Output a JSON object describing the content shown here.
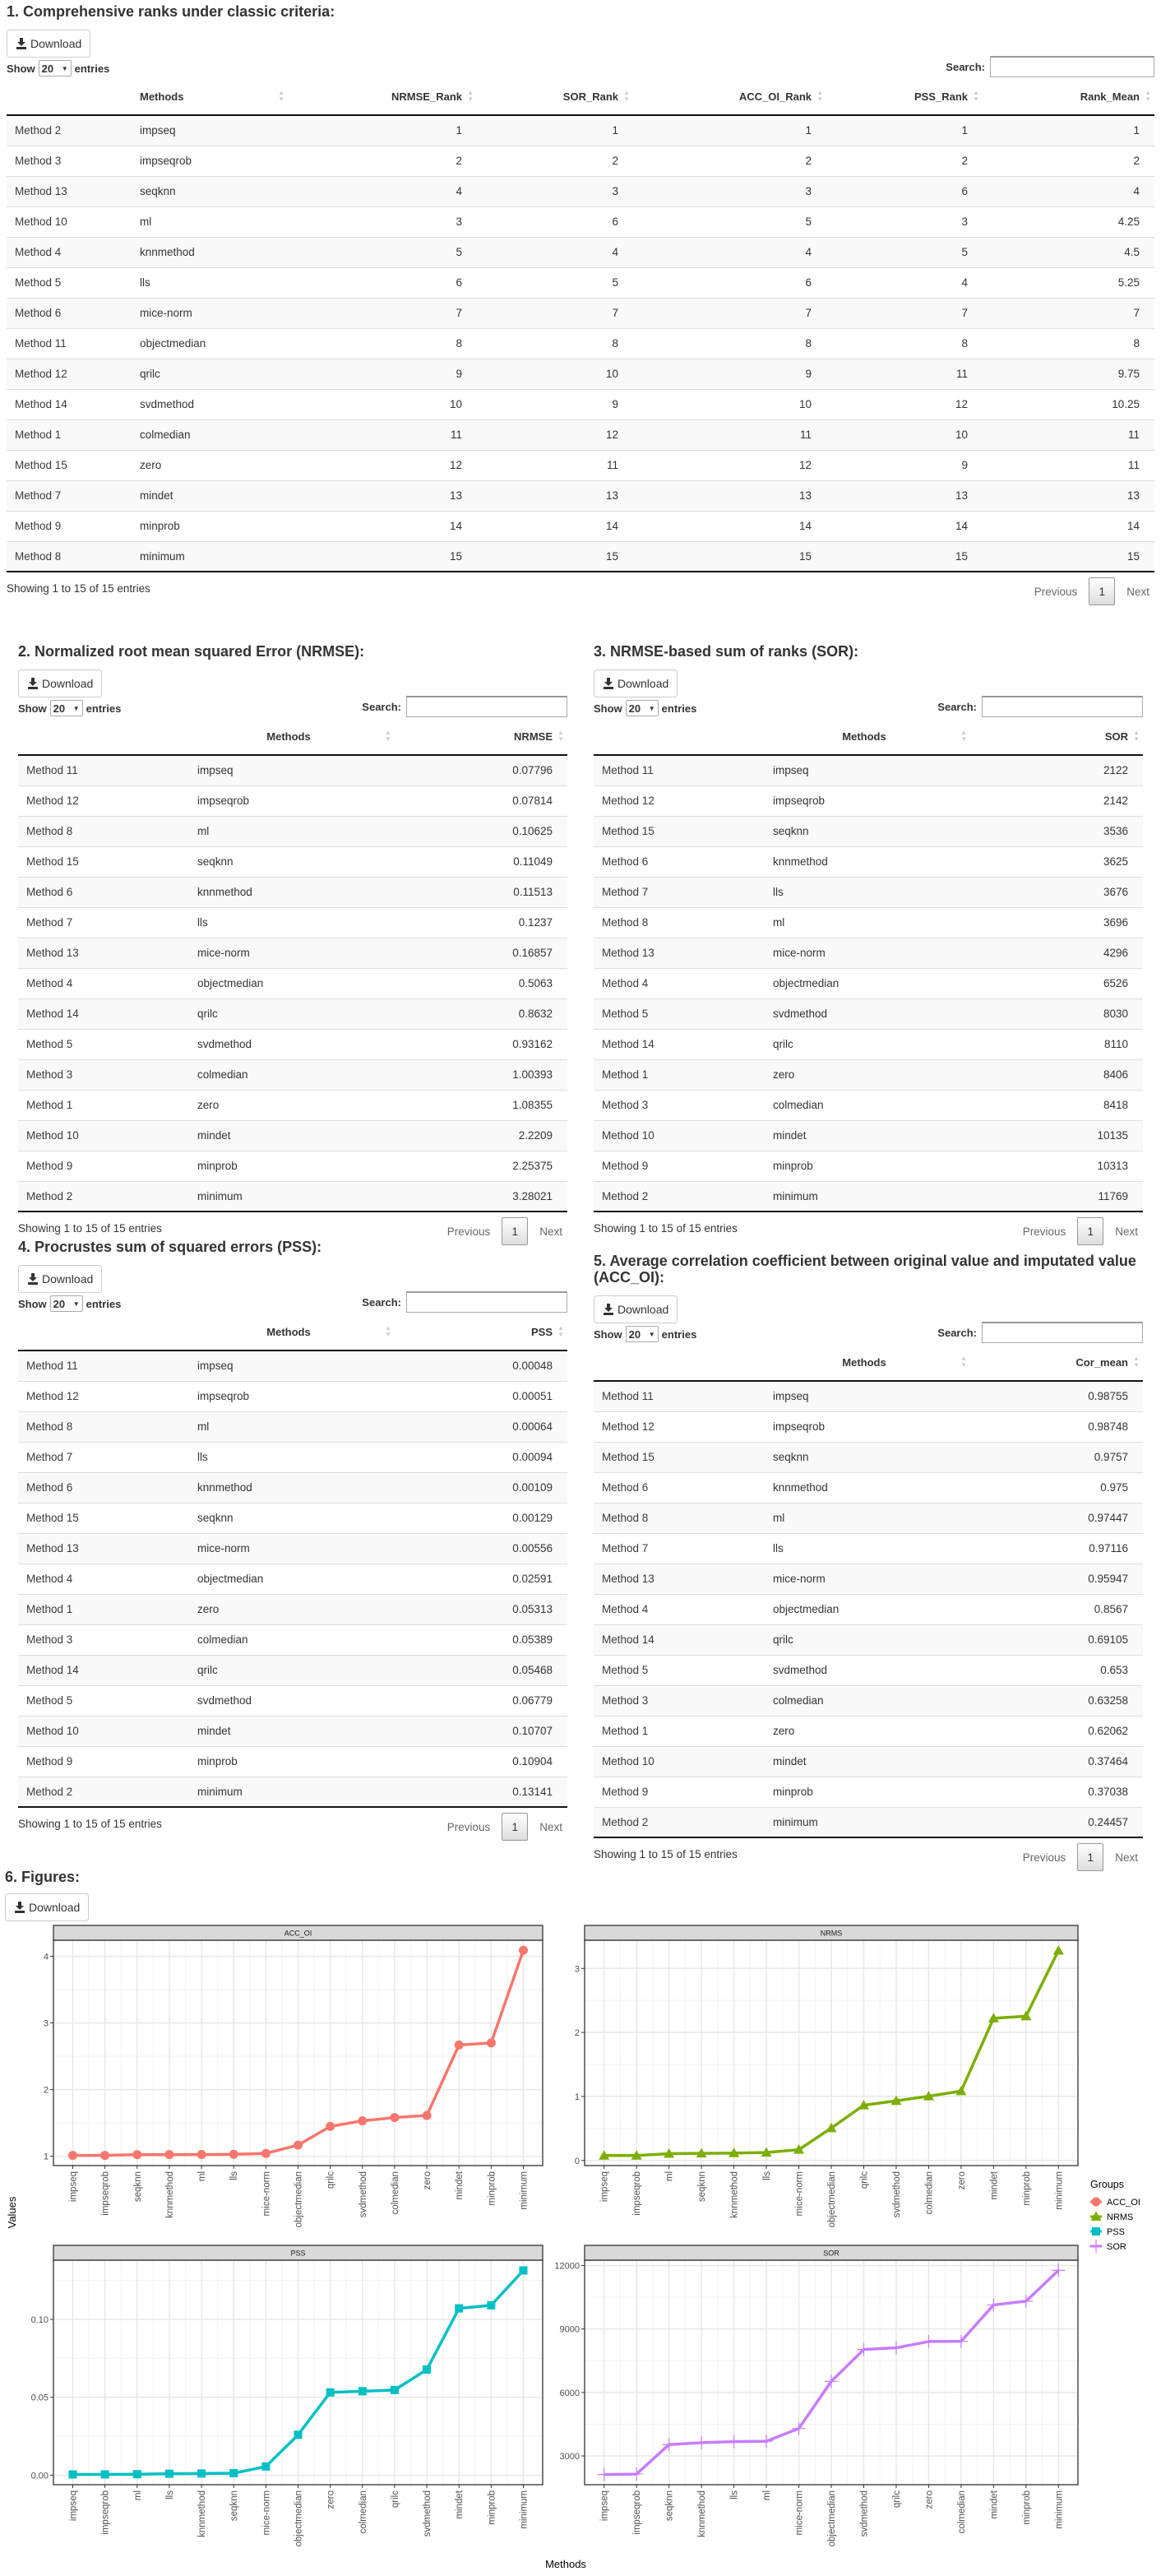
{
  "common": {
    "download_label": "Download",
    "show_label": "Show",
    "entries_label": "entries",
    "page_length": "20",
    "search_label": "Search:",
    "search_value": "",
    "info_text": "Showing 1 to 15 of 15 entries",
    "prev_label": "Previous",
    "current_page": "1",
    "next_label": "Next"
  },
  "tables": [
    {
      "title": "1. Comprehensive ranks under classic criteria:",
      "columns": [
        "",
        "Methods",
        "NRMSE_Rank",
        "SOR_Rank",
        "ACC_OI_Rank",
        "PSS_Rank",
        "Rank_Mean"
      ],
      "rows": [
        [
          "Method 2",
          "impseq",
          "1",
          "1",
          "1",
          "1",
          "1"
        ],
        [
          "Method 3",
          "impseqrob",
          "2",
          "2",
          "2",
          "2",
          "2"
        ],
        [
          "Method 13",
          "seqknn",
          "4",
          "3",
          "3",
          "6",
          "4"
        ],
        [
          "Method 10",
          "ml",
          "3",
          "6",
          "5",
          "3",
          "4.25"
        ],
        [
          "Method 4",
          "knnmethod",
          "5",
          "4",
          "4",
          "5",
          "4.5"
        ],
        [
          "Method 5",
          "lls",
          "6",
          "5",
          "6",
          "4",
          "5.25"
        ],
        [
          "Method 6",
          "mice-norm",
          "7",
          "7",
          "7",
          "7",
          "7"
        ],
        [
          "Method 11",
          "objectmedian",
          "8",
          "8",
          "8",
          "8",
          "8"
        ],
        [
          "Method 12",
          "qrilc",
          "9",
          "10",
          "9",
          "11",
          "9.75"
        ],
        [
          "Method 14",
          "svdmethod",
          "10",
          "9",
          "10",
          "12",
          "10.25"
        ],
        [
          "Method 1",
          "colmedian",
          "11",
          "12",
          "11",
          "10",
          "11"
        ],
        [
          "Method 15",
          "zero",
          "12",
          "11",
          "12",
          "9",
          "11"
        ],
        [
          "Method 7",
          "mindet",
          "13",
          "13",
          "13",
          "13",
          "13"
        ],
        [
          "Method 9",
          "minprob",
          "14",
          "14",
          "14",
          "14",
          "14"
        ],
        [
          "Method 8",
          "minimum",
          "15",
          "15",
          "15",
          "15",
          "15"
        ]
      ]
    },
    {
      "title": "2. Normalized root mean squared Error (NRMSE):",
      "columns": [
        "",
        "Methods",
        "NRMSE"
      ],
      "rows": [
        [
          "Method 11",
          "impseq",
          "0.07796"
        ],
        [
          "Method 12",
          "impseqrob",
          "0.07814"
        ],
        [
          "Method 8",
          "ml",
          "0.10625"
        ],
        [
          "Method 15",
          "seqknn",
          "0.11049"
        ],
        [
          "Method 6",
          "knnmethod",
          "0.11513"
        ],
        [
          "Method 7",
          "lls",
          "0.1237"
        ],
        [
          "Method 13",
          "mice-norm",
          "0.16857"
        ],
        [
          "Method 4",
          "objectmedian",
          "0.5063"
        ],
        [
          "Method 14",
          "qrilc",
          "0.8632"
        ],
        [
          "Method 5",
          "svdmethod",
          "0.93162"
        ],
        [
          "Method 3",
          "colmedian",
          "1.00393"
        ],
        [
          "Method 1",
          "zero",
          "1.08355"
        ],
        [
          "Method 10",
          "mindet",
          "2.2209"
        ],
        [
          "Method 9",
          "minprob",
          "2.25375"
        ],
        [
          "Method 2",
          "minimum",
          "3.28021"
        ]
      ]
    },
    {
      "title": "3. NRMSE-based sum of ranks (SOR):",
      "columns": [
        "",
        "Methods",
        "SOR"
      ],
      "rows": [
        [
          "Method 11",
          "impseq",
          "2122"
        ],
        [
          "Method 12",
          "impseqrob",
          "2142"
        ],
        [
          "Method 15",
          "seqknn",
          "3536"
        ],
        [
          "Method 6",
          "knnmethod",
          "3625"
        ],
        [
          "Method 7",
          "lls",
          "3676"
        ],
        [
          "Method 8",
          "ml",
          "3696"
        ],
        [
          "Method 13",
          "mice-norm",
          "4296"
        ],
        [
          "Method 4",
          "objectmedian",
          "6526"
        ],
        [
          "Method 5",
          "svdmethod",
          "8030"
        ],
        [
          "Method 14",
          "qrilc",
          "8110"
        ],
        [
          "Method 1",
          "zero",
          "8406"
        ],
        [
          "Method 3",
          "colmedian",
          "8418"
        ],
        [
          "Method 10",
          "mindet",
          "10135"
        ],
        [
          "Method 9",
          "minprob",
          "10313"
        ],
        [
          "Method 2",
          "minimum",
          "11769"
        ]
      ]
    },
    {
      "title": "4. Procrustes sum of squared errors (PSS):",
      "columns": [
        "",
        "Methods",
        "PSS"
      ],
      "rows": [
        [
          "Method 11",
          "impseq",
          "0.00048"
        ],
        [
          "Method 12",
          "impseqrob",
          "0.00051"
        ],
        [
          "Method 8",
          "ml",
          "0.00064"
        ],
        [
          "Method 7",
          "lls",
          "0.00094"
        ],
        [
          "Method 6",
          "knnmethod",
          "0.00109"
        ],
        [
          "Method 15",
          "seqknn",
          "0.00129"
        ],
        [
          "Method 13",
          "mice-norm",
          "0.00556"
        ],
        [
          "Method 4",
          "objectmedian",
          "0.02591"
        ],
        [
          "Method 1",
          "zero",
          "0.05313"
        ],
        [
          "Method 3",
          "colmedian",
          "0.05389"
        ],
        [
          "Method 14",
          "qrilc",
          "0.05468"
        ],
        [
          "Method 5",
          "svdmethod",
          "0.06779"
        ],
        [
          "Method 10",
          "mindet",
          "0.10707"
        ],
        [
          "Method 9",
          "minprob",
          "0.10904"
        ],
        [
          "Method 2",
          "minimum",
          "0.13141"
        ]
      ]
    },
    {
      "title": "5. Average correlation coefficient between original value and imputated value (ACC_OI):",
      "columns": [
        "",
        "Methods",
        "Cor_mean"
      ],
      "rows": [
        [
          "Method 11",
          "impseq",
          "0.98755"
        ],
        [
          "Method 12",
          "impseqrob",
          "0.98748"
        ],
        [
          "Method 15",
          "seqknn",
          "0.9757"
        ],
        [
          "Method 6",
          "knnmethod",
          "0.975"
        ],
        [
          "Method 8",
          "ml",
          "0.97447"
        ],
        [
          "Method 7",
          "lls",
          "0.97116"
        ],
        [
          "Method 13",
          "mice-norm",
          "0.95947"
        ],
        [
          "Method 4",
          "objectmedian",
          "0.8567"
        ],
        [
          "Method 14",
          "qrilc",
          "0.69105"
        ],
        [
          "Method 5",
          "svdmethod",
          "0.653"
        ],
        [
          "Method 3",
          "colmedian",
          "0.63258"
        ],
        [
          "Method 1",
          "zero",
          "0.62062"
        ],
        [
          "Method 10",
          "mindet",
          "0.37464"
        ],
        [
          "Method 9",
          "minprob",
          "0.37038"
        ],
        [
          "Method 2",
          "minimum",
          "0.24457"
        ]
      ]
    }
  ],
  "figures": {
    "title": "6. Figures:",
    "xlabel": "Methods",
    "ylabel": "Values",
    "legend_title": "Groups",
    "legend_placement": "right"
  },
  "chart_data": [
    {
      "type": "line",
      "panel": "ACC_OI",
      "color": "#F8766D",
      "marker": "circle",
      "ylim": [
        0.86,
        4.24
      ],
      "yticks": [
        "1",
        "2",
        "3",
        "4"
      ],
      "ytick_values": [
        1,
        2,
        3,
        4
      ],
      "categories": [
        "impseq",
        "impseqrob",
        "seqknn",
        "knnmethod",
        "ml",
        "lls",
        "mice-norm",
        "objectmedian",
        "qrilc",
        "svdmethod",
        "colmedian",
        "zero",
        "mindet",
        "minprob",
        "minimum"
      ],
      "values": [
        1.0126,
        1.0127,
        1.0249,
        1.0256,
        1.0262,
        1.0297,
        1.0422,
        1.1673,
        1.4471,
        1.5314,
        1.5808,
        1.6113,
        2.6692,
        2.6999,
        4.0888
      ]
    },
    {
      "type": "line",
      "panel": "NRMS",
      "color": "#7CAE00",
      "marker": "triangle",
      "ylim": [
        -0.08,
        3.44
      ],
      "yticks": [
        "0",
        "1",
        "2",
        "3"
      ],
      "ytick_values": [
        0,
        1,
        2,
        3
      ],
      "categories": [
        "impseq",
        "impseqrob",
        "ml",
        "seqknn",
        "knnmethod",
        "lls",
        "mice-norm",
        "objectmedian",
        "qrilc",
        "svdmethod",
        "colmedian",
        "zero",
        "mindet",
        "minprob",
        "minimum"
      ],
      "values": [
        0.07796,
        0.07814,
        0.10625,
        0.11049,
        0.11513,
        0.1237,
        0.16857,
        0.5063,
        0.8632,
        0.93162,
        1.00393,
        1.08355,
        2.2209,
        2.25375,
        3.28021
      ]
    },
    {
      "type": "line",
      "panel": "PSS",
      "color": "#00BFC4",
      "marker": "square",
      "ylim": [
        -0.0061,
        0.138
      ],
      "yticks": [
        "0.00",
        "0.05",
        "0.10"
      ],
      "ytick_values": [
        0,
        0.05,
        0.1
      ],
      "categories": [
        "impseq",
        "impseqrob",
        "ml",
        "lls",
        "knnmethod",
        "seqknn",
        "mice-norm",
        "objectmedian",
        "zero",
        "colmedian",
        "qrilc",
        "svdmethod",
        "mindet",
        "minprob",
        "minimum"
      ],
      "values": [
        0.00048,
        0.00051,
        0.00064,
        0.00094,
        0.00109,
        0.00129,
        0.00556,
        0.02591,
        0.05313,
        0.05389,
        0.05468,
        0.06779,
        0.10707,
        0.10904,
        0.13141
      ]
    },
    {
      "type": "line",
      "panel": "SOR",
      "color": "#C77CFF",
      "marker": "plus",
      "ylim": [
        1640,
        12251
      ],
      "yticks": [
        "3000",
        "6000",
        "9000",
        "12000"
      ],
      "ytick_values": [
        3000,
        6000,
        9000,
        12000
      ],
      "categories": [
        "impseq",
        "impseqrob",
        "seqknn",
        "knnmethod",
        "lls",
        "ml",
        "mice-norm",
        "objectmedian",
        "svdmethod",
        "qrilc",
        "zero",
        "colmedian",
        "mindet",
        "minprob",
        "minimum"
      ],
      "values": [
        2122,
        2142,
        3536,
        3625,
        3676,
        3696,
        4296,
        6526,
        8030,
        8110,
        8406,
        8418,
        10135,
        10313,
        11769
      ]
    }
  ]
}
